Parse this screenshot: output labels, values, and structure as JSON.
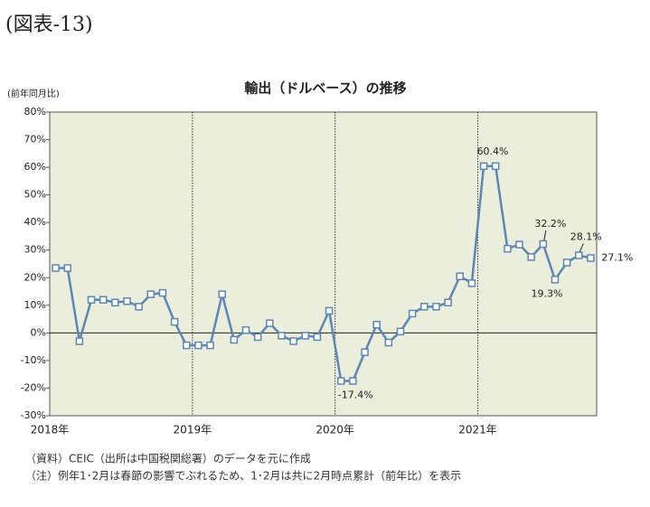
{
  "heading": "(図表-13)",
  "chart_data": {
    "type": "line",
    "title": "輸出（ドルベース）の推移",
    "y_axis_label": "(前年同月比)",
    "categories": [
      "2018年",
      null,
      null,
      null,
      null,
      null,
      null,
      null,
      null,
      null,
      null,
      null,
      "2019年",
      null,
      null,
      null,
      null,
      null,
      null,
      null,
      null,
      null,
      null,
      null,
      "2020年",
      null,
      null,
      null,
      null,
      null,
      null,
      null,
      null,
      null,
      null,
      null,
      "2021年",
      null,
      null,
      null,
      null,
      null,
      null,
      null,
      null,
      null
    ],
    "series": [
      {
        "name": "輸出",
        "color": "#5b87b5",
        "values": [
          23.5,
          23.5,
          -3,
          12,
          12,
          11,
          11.5,
          9.5,
          14,
          14.5,
          4,
          -4.5,
          -4.5,
          -4.5,
          14,
          -2.5,
          1,
          -1.5,
          3.5,
          -1,
          -3,
          -1,
          -1.5,
          8,
          -17.4,
          -17.4,
          -7,
          3,
          -3.5,
          0.5,
          7,
          9.5,
          9.5,
          11,
          20.5,
          18,
          60.4,
          60.4,
          30.5,
          32,
          27.5,
          32.2,
          19.3,
          25.5,
          28.1,
          27.1
        ],
        "value_labels": [
          null,
          null,
          null,
          null,
          null,
          null,
          null,
          null,
          null,
          null,
          null,
          null,
          null,
          null,
          null,
          null,
          null,
          null,
          null,
          null,
          null,
          null,
          null,
          null,
          "-17.4%",
          null,
          null,
          null,
          null,
          null,
          null,
          null,
          null,
          null,
          null,
          null,
          "60.4%",
          null,
          null,
          null,
          null,
          "32.2%",
          "19.3%",
          null,
          "28.1%",
          "27.1%"
        ]
      }
    ],
    "ylim": [
      -30,
      80
    ],
    "yticks": [
      {
        "value": -30,
        "label": "-30%"
      },
      {
        "value": -20,
        "label": "-20%"
      },
      {
        "value": -10,
        "label": "-10%"
      },
      {
        "value": 0,
        "label": "0%"
      },
      {
        "value": 10,
        "label": "10%"
      },
      {
        "value": 20,
        "label": "20%"
      },
      {
        "value": 30,
        "label": "30%"
      },
      {
        "value": 40,
        "label": "40%"
      },
      {
        "value": 50,
        "label": "50%"
      },
      {
        "value": 60,
        "label": "60%"
      },
      {
        "value": 70,
        "label": "70%"
      },
      {
        "value": 80,
        "label": "80%"
      }
    ],
    "plot_background": "#eaeedb"
  },
  "notes": [
    "（資料）CEIC（出所は中国税関総署）のデータを元に作成",
    "（注）例年1･2月は春節の影響でぶれるため、1･2月は共に2月時点累計（前年比）を表示"
  ]
}
